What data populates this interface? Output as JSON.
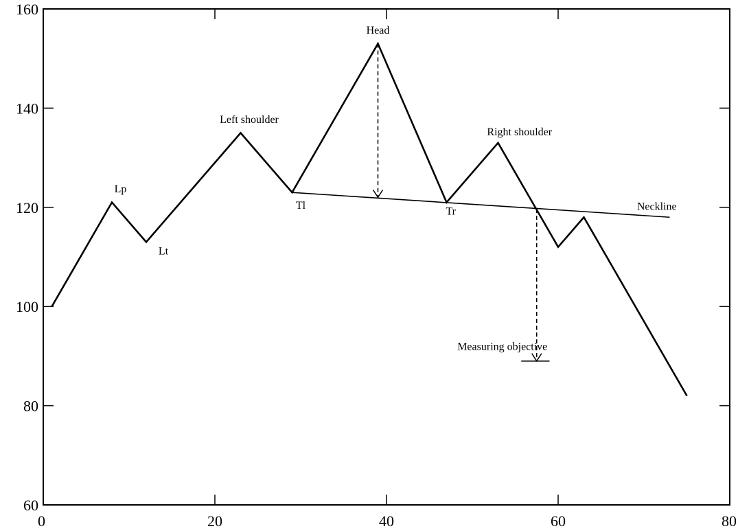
{
  "chart_data": {
    "type": "line",
    "title": "",
    "xlabel": "",
    "ylabel": "",
    "xlim": [
      0,
      80
    ],
    "ylim": [
      60,
      160
    ],
    "x_ticks": [
      0,
      20,
      40,
      60,
      80
    ],
    "y_ticks": [
      60,
      80,
      100,
      120,
      140,
      160
    ],
    "grid": false,
    "series": [
      {
        "x": [
          1,
          8,
          12,
          23,
          29,
          39,
          47,
          53,
          60,
          63,
          75
        ],
        "y": [
          100,
          121,
          113,
          135,
          123,
          153,
          121,
          133,
          112,
          118,
          82
        ]
      }
    ],
    "neckline": {
      "label": "Neckline",
      "x": [
        29,
        73
      ],
      "y": [
        123,
        118
      ]
    },
    "head_drop": {
      "x": 39,
      "from": 153,
      "to": 122
    },
    "objective_drop": {
      "x": 57.5,
      "from": 119.7,
      "to": 89
    },
    "objective_level": {
      "x": [
        55.7,
        59
      ],
      "y": 89
    },
    "annotations": [
      {
        "text": "Head",
        "x": 39,
        "y": 155
      },
      {
        "text": "Left shoulder",
        "x": 24,
        "y": 137
      },
      {
        "text": "Right shoulder",
        "x": 55.5,
        "y": 134.5
      },
      {
        "text": "Lp",
        "x": 9,
        "y": 123
      },
      {
        "text": "Lt",
        "x": 14,
        "y": 110.5
      },
      {
        "text": "Tl",
        "x": 30,
        "y": 119.7
      },
      {
        "text": "Tr",
        "x": 47.5,
        "y": 118.5
      },
      {
        "text": "Neckline",
        "x": 71.5,
        "y": 119.5
      },
      {
        "text": "Measuring objective",
        "x": 53.5,
        "y": 91.2
      }
    ]
  }
}
